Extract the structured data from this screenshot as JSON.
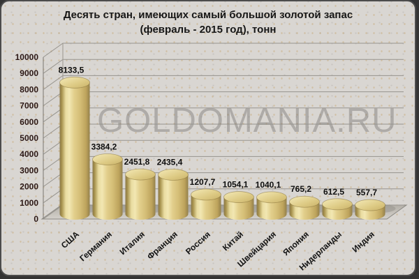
{
  "title": {
    "line1": "Десять стран, имеющих самый большой золотой запас",
    "line2": "(февраль - 2015 год), тонн"
  },
  "watermark": "GOLDOMANIA.RU",
  "chart_data": {
    "type": "bar",
    "subtype": "3d-cylinder",
    "title": "Десять стран, имеющих самый большой золотой запас (февраль - 2015 год), тонн",
    "categories": [
      "США",
      "Германия",
      "Италия",
      "Франция",
      "Россия",
      "Китай",
      "Швейцария",
      "Япония",
      "Нидерланды",
      "Индия"
    ],
    "values": [
      8133.5,
      3384.2,
      2451.8,
      2435.4,
      1207.7,
      1054.1,
      1040.1,
      765.2,
      612.5,
      557.7
    ],
    "value_labels": [
      "8133,5",
      "3384,2",
      "2451,8",
      "2435,4",
      "1207,7",
      "1054,1",
      "1040,1",
      "765,2",
      "612,5",
      "557,7"
    ],
    "xlabel": "",
    "ylabel": "",
    "ylim": [
      0,
      10000
    ],
    "y_tick_step": 1000,
    "y_tick_labels": [
      "0",
      "1000",
      "2000",
      "3000",
      "4000",
      "5000",
      "6000",
      "7000",
      "8000",
      "9000",
      "10000"
    ],
    "grid": true,
    "legend": false,
    "units": "тонн"
  },
  "colors": {
    "background": "#d9d6d2",
    "speckle": "#bb8c3e",
    "frame_border": "#4c4c4c",
    "gridline": "#97948e",
    "axis": "#8a8781",
    "floor_top": "#b4b0a8",
    "floor_bottom": "#d3d0ca",
    "bar_dark_edge": "#8a7847",
    "bar_highlight": "#f2e7b2",
    "bar_mid": "#d4bd76",
    "bar_top_light": "#f4eab8",
    "bar_top_dark": "#c9b168",
    "shadow": "#8e8b84",
    "title_text": "#161616",
    "tick_text": "#2b1714",
    "value_text": "#0e0e0e",
    "watermark_text": "#9a9894"
  }
}
